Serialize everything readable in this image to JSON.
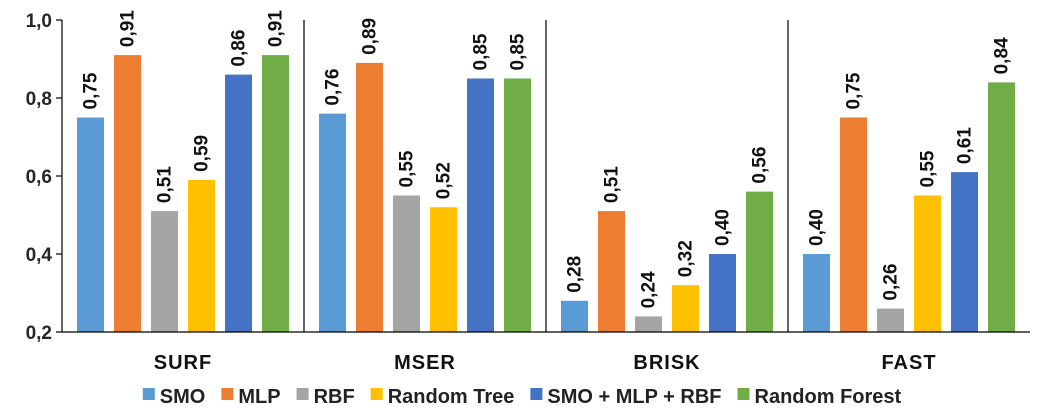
{
  "chart_data": {
    "type": "bar",
    "title": "",
    "xlabel": "",
    "ylabel": "",
    "ylim": [
      0.2,
      1.0
    ],
    "yticks": [
      "0,2",
      "0,4",
      "0,6",
      "0,8",
      "1,0"
    ],
    "ytick_values": [
      0.2,
      0.4,
      0.6,
      0.8,
      1.0
    ],
    "grid": false,
    "legend_position": "bottom",
    "categories": [
      "SURF",
      "MSER",
      "BRISK",
      "FAST"
    ],
    "series": [
      {
        "name": "SMO",
        "color": "#5B9BD5",
        "values": [
          0.75,
          0.76,
          0.28,
          0.4
        ],
        "labels": [
          "0,75",
          "0,76",
          "0,28",
          "0,40"
        ]
      },
      {
        "name": "MLP",
        "color": "#ED7D31",
        "values": [
          0.91,
          0.89,
          0.51,
          0.75
        ],
        "labels": [
          "0,91",
          "0,89",
          "0,51",
          "0,75"
        ]
      },
      {
        "name": "RBF",
        "color": "#A5A5A5",
        "values": [
          0.51,
          0.55,
          0.24,
          0.26
        ],
        "labels": [
          "0,51",
          "0,55",
          "0,24",
          "0,26"
        ]
      },
      {
        "name": "Random Tree",
        "color": "#FFC000",
        "values": [
          0.59,
          0.52,
          0.32,
          0.55
        ],
        "labels": [
          "0,59",
          "0,52",
          "0,32",
          "0,55"
        ]
      },
      {
        "name": "SMO + MLP + RBF",
        "color": "#4472C4",
        "values": [
          0.86,
          0.85,
          0.4,
          0.61
        ],
        "labels": [
          "0,86",
          "0,85",
          "0,40",
          "0,61"
        ]
      },
      {
        "name": "Random Forest",
        "color": "#70AD47",
        "values": [
          0.91,
          0.85,
          0.56,
          0.84
        ],
        "labels": [
          "0,91",
          "0,85",
          "0,56",
          "0,84"
        ]
      }
    ]
  }
}
